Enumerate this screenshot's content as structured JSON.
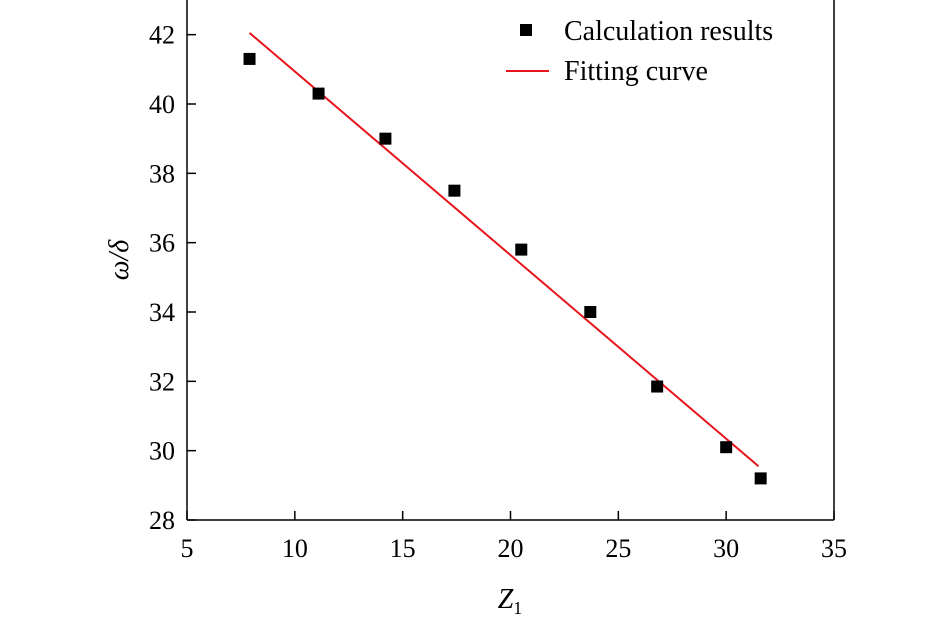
{
  "chart_data": {
    "type": "scatter",
    "xlabel": "Z",
    "xlabel_subscript": "1",
    "ylabel": "ω/δ",
    "xlim": [
      5,
      35
    ],
    "ylim": [
      28,
      43
    ],
    "xticks": [
      5,
      10,
      15,
      20,
      25,
      30,
      35
    ],
    "yticks": [
      28,
      30,
      32,
      34,
      36,
      38,
      40,
      42
    ],
    "grid": false,
    "legend_position": "top-right",
    "series": [
      {
        "name": "Calculation results",
        "kind": "scatter",
        "marker": "square",
        "color": "#000000",
        "x": [
          7.9,
          11.1,
          14.2,
          17.4,
          20.5,
          23.7,
          26.8,
          30.0,
          31.6
        ],
        "y": [
          41.3,
          40.3,
          39.0,
          37.5,
          35.8,
          34.0,
          31.85,
          30.1,
          29.2
        ]
      },
      {
        "name": "Fitting curve",
        "kind": "line",
        "color": "#e8141b",
        "x": [
          7.9,
          31.5
        ],
        "y": [
          42.05,
          29.55
        ]
      }
    ]
  }
}
